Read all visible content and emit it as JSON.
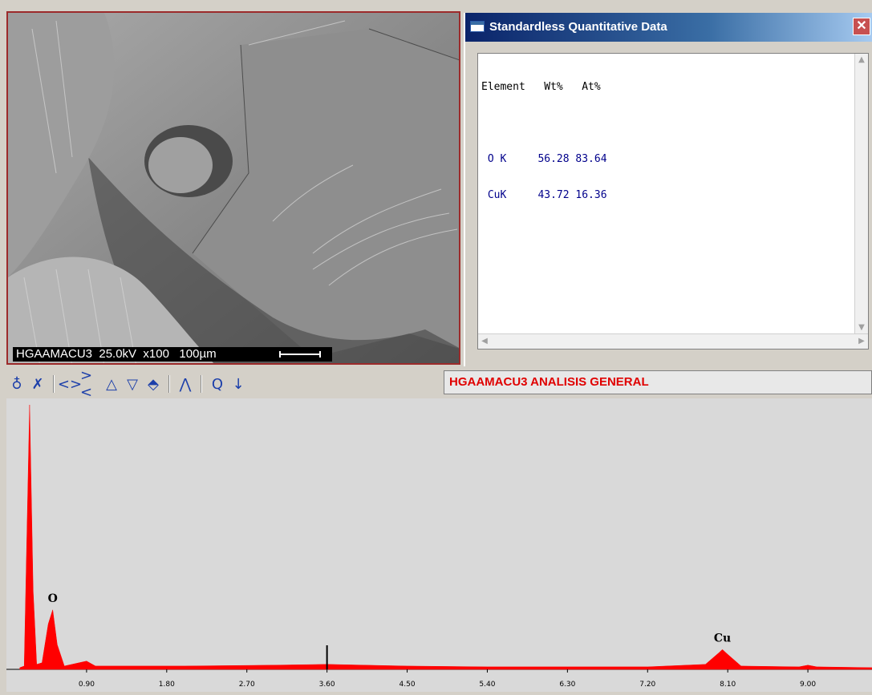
{
  "sem_image": {
    "caption": "HGAAMACU3  25.0kV  x100   100µm"
  },
  "quant_window": {
    "title": "Standardless Quantitative Data",
    "close_label": "✕",
    "header": "Element   Wt%   At%",
    "rows": [
      " O K     56.28 83.64",
      " CuK     43.72 16.36"
    ]
  },
  "toolbar": {
    "icons": [
      "probe-icon",
      "marker-icon",
      "expand-icon",
      "compress-icon",
      "scale-up-icon",
      "scale-down-icon",
      "erase-icon",
      "peaks-icon",
      "zoom-icon",
      "arrow-down-icon"
    ],
    "glyphs": [
      "♁",
      "✗",
      "<>",
      "><",
      "△",
      "▽",
      "⬘",
      "⋀",
      "Q",
      "↓"
    ]
  },
  "spectrum_title": "HGAAMACU3 ANALISIS GENERAL",
  "chart_data": {
    "type": "area",
    "xlabel": "",
    "ylabel": "",
    "xlim": [
      0,
      9.72
    ],
    "x_ticks": [
      "0.90",
      "1.80",
      "2.70",
      "3.60",
      "4.50",
      "5.40",
      "6.30",
      "7.20",
      "8.10",
      "9.00"
    ],
    "peak_labels": [
      {
        "label": "O",
        "x": 0.52
      },
      {
        "label": "Cu",
        "x": 8.04
      }
    ],
    "series": [
      {
        "color": "#ff0000",
        "x": [
          0.15,
          0.2,
          0.26,
          0.3,
          0.34,
          0.4,
          0.47,
          0.52,
          0.57,
          0.65,
          0.9,
          1.0,
          2.0,
          3.0,
          3.6,
          4.5,
          5.4,
          6.3,
          7.2,
          7.85,
          8.0,
          8.04,
          8.1,
          8.25,
          8.9,
          9.0,
          9.1,
          9.72
        ],
        "y": [
          2,
          4,
          320,
          95,
          6,
          8,
          55,
          72,
          30,
          4,
          10,
          4,
          4,
          5,
          6,
          4,
          3,
          3,
          3,
          6,
          20,
          24,
          18,
          4,
          3,
          5,
          3,
          2
        ]
      }
    ],
    "marker_x": 3.6,
    "color": "#ff0000"
  }
}
